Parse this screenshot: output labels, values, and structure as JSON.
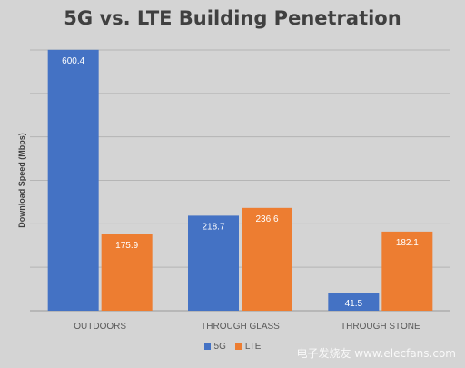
{
  "chart_data": {
    "type": "bar",
    "title": "5G vs. LTE Building Penetration",
    "ylabel": "Download Speed (Mbps)",
    "xlabel": "",
    "categories": [
      "OUTDOORS",
      "THROUGH GLASS",
      "THROUGH STONE"
    ],
    "series": [
      {
        "name": "5G",
        "values": [
          600.4,
          218.7,
          41.5
        ],
        "color": "#4472c4"
      },
      {
        "name": "LTE",
        "values": [
          175.9,
          236.6,
          182.1
        ],
        "color": "#ed7d31"
      }
    ],
    "ylim": [
      0,
      600
    ],
    "grid": true,
    "legend": "bottom"
  },
  "watermark": "电子发烧友 www.elecfans.com"
}
